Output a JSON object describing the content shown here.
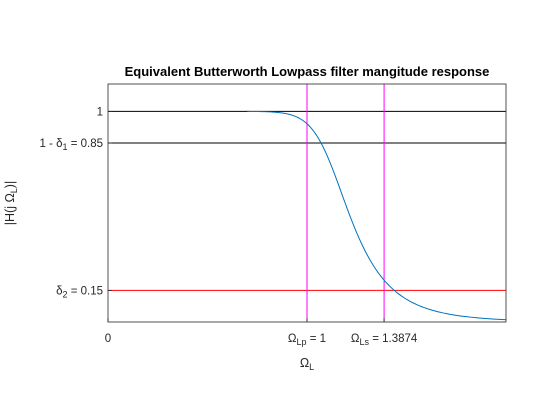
{
  "chart_data": {
    "type": "line",
    "title": "Equivalent Butterworth Lowpass filter mangitude response",
    "xlabel": {
      "main": "Ω",
      "sub": "L"
    },
    "ylabel": "|H(j Ω_L)|",
    "xlim": [
      0,
      2
    ],
    "ylim": [
      0,
      1.13
    ],
    "x_tick_labels": [
      {
        "value": 0,
        "label": "0"
      },
      {
        "value": 1,
        "label": "Ω",
        "sub": "Lp",
        "suffix": " = 1"
      },
      {
        "value": 1.3874,
        "label": "Ω",
        "sub": "Ls",
        "suffix": " = 1.3874"
      }
    ],
    "y_tick_labels": [
      {
        "value": 1,
        "label": "1"
      },
      {
        "value": 0.85,
        "label": "1 - δ",
        "sub": "1",
        "suffix": " = 0.85"
      },
      {
        "value": 0.15,
        "label": "δ",
        "sub": "2",
        "suffix": " = 0.15"
      }
    ],
    "series": [
      {
        "name": "",
        "color": "#0072BD",
        "filter": {
          "kind": "butterworth",
          "order": 8,
          "cutoff": 1.1365
        },
        "x_start": 0.7,
        "x_end": 2.0
      }
    ],
    "reference_lines": [
      {
        "orientation": "horizontal",
        "value": 1,
        "color": "#000000"
      },
      {
        "orientation": "horizontal",
        "value": 0.85,
        "color": "#000000"
      },
      {
        "orientation": "horizontal",
        "value": 0.15,
        "color": "#FF0000"
      },
      {
        "orientation": "vertical",
        "value": 1,
        "color": "#FF00FF"
      },
      {
        "orientation": "vertical",
        "value": 1.3874,
        "color": "#FF00FF"
      }
    ],
    "grid": false,
    "legend": "none"
  }
}
